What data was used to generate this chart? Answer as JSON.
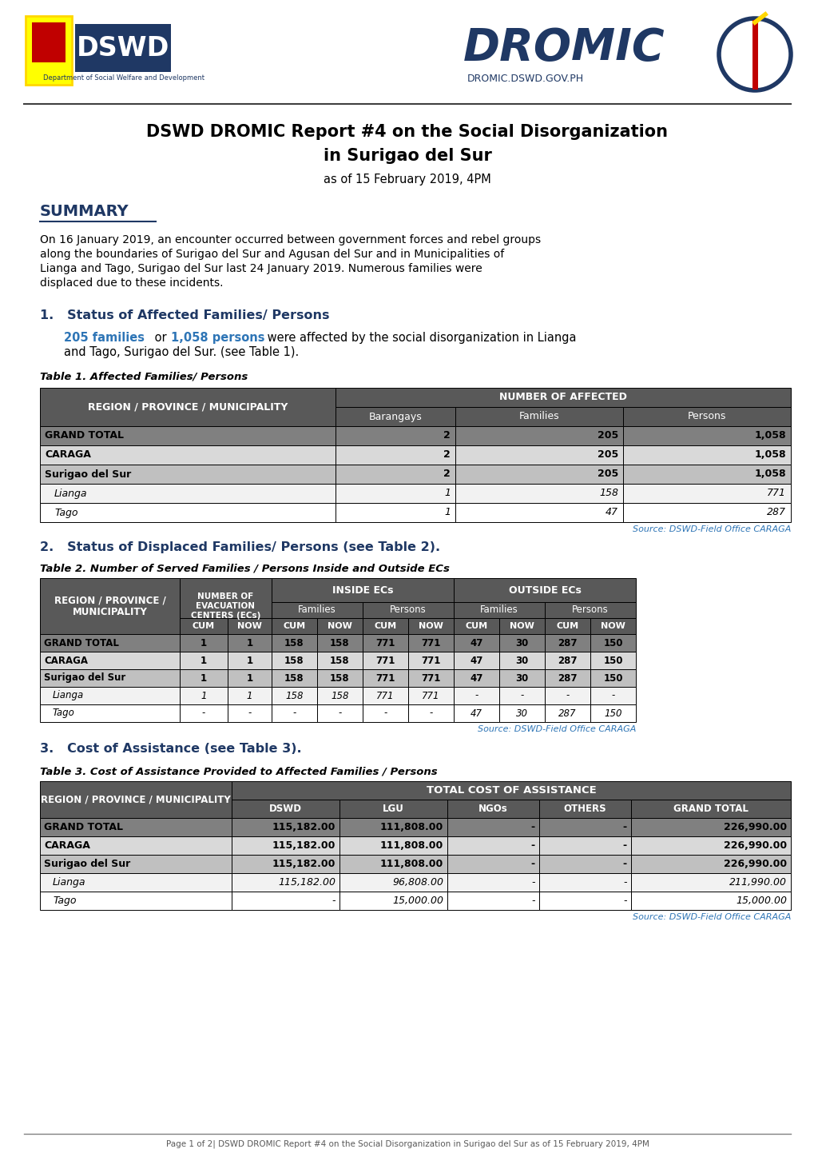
{
  "title_line1": "DSWD DROMIC Report #4 on the Social Disorganization",
  "title_line2": "in Surigao del Sur",
  "title_date": "as of 15 February 2019, 4PM",
  "summary_header": "SUMMARY",
  "summary_lines": [
    "On 16 January 2019, an encounter occurred between government forces and rebel groups",
    "along the boundaries of Surigao del Sur and Agusan del Sur and in Municipalities of",
    "Lianga and Tago, Surigao del Sur last 24 January 2019. Numerous families were",
    "displaced due to these incidents."
  ],
  "section1_header": "1.   Status of Affected Families/ Persons",
  "table1_title": "Table 1. Affected Families/ Persons",
  "table1_rows": [
    [
      "GRAND TOTAL",
      "2",
      "205",
      "1,058"
    ],
    [
      "CARAGA",
      "2",
      "205",
      "1,058"
    ],
    [
      "Surigao del Sur",
      "2",
      "205",
      "1,058"
    ],
    [
      "Lianga",
      "1",
      "158",
      "771"
    ],
    [
      "Tago",
      "1",
      "47",
      "287"
    ]
  ],
  "table1_source": "Source: DSWD-Field Office CARAGA",
  "section2_header": "2.   Status of Displaced Families/ Persons (see Table 2).",
  "table2_title": "Table 2. Number of Served Families / Persons Inside and Outside ECs",
  "table2_rows": [
    [
      "GRAND TOTAL",
      "1",
      "1",
      "158",
      "158",
      "771",
      "771",
      "47",
      "30",
      "287",
      "150"
    ],
    [
      "CARAGA",
      "1",
      "1",
      "158",
      "158",
      "771",
      "771",
      "47",
      "30",
      "287",
      "150"
    ],
    [
      "Surigao del Sur",
      "1",
      "1",
      "158",
      "158",
      "771",
      "771",
      "47",
      "30",
      "287",
      "150"
    ],
    [
      "Lianga",
      "1",
      "1",
      "158",
      "158",
      "771",
      "771",
      "-",
      "-",
      "-",
      "-"
    ],
    [
      "Tago",
      "-",
      "-",
      "-",
      "-",
      "-",
      "-",
      "47",
      "30",
      "287",
      "150"
    ]
  ],
  "table2_source": "Source: DSWD-Field Office CARAGA",
  "section3_header": "3.   Cost of Assistance (see Table 3).",
  "table3_title": "Table 3. Cost of Assistance Provided to Affected Families / Persons",
  "table3_rows": [
    [
      "GRAND TOTAL",
      "115,182.00",
      "111,808.00",
      "-",
      "-",
      "226,990.00"
    ],
    [
      "CARAGA",
      "115,182.00",
      "111,808.00",
      "-",
      "-",
      "226,990.00"
    ],
    [
      "Surigao del Sur",
      "115,182.00",
      "111,808.00",
      "-",
      "-",
      "226,990.00"
    ],
    [
      "Lianga",
      "115,182.00",
      "96,808.00",
      "-",
      "-",
      "211,990.00"
    ],
    [
      "Tago",
      "-",
      "15,000.00",
      "-",
      "-",
      "15,000.00"
    ]
  ],
  "table3_source": "Source: DSWD-Field Office CARAGA",
  "footer_text": "Page 1 of 2| DSWD DROMIC Report #4 on the Social Disorganization in Surigao del Sur as of 15 February 2019, 4PM",
  "col_header_dark": "#595959",
  "row_grand_total": "#808080",
  "row_caraga": "#D9D9D9",
  "row_surigao": "#C0C0C0",
  "row_lianga": "#F2F2F2",
  "row_tago": "#FFFFFF",
  "blue_dark": "#1F3864",
  "blue_link": "#2E75B6"
}
